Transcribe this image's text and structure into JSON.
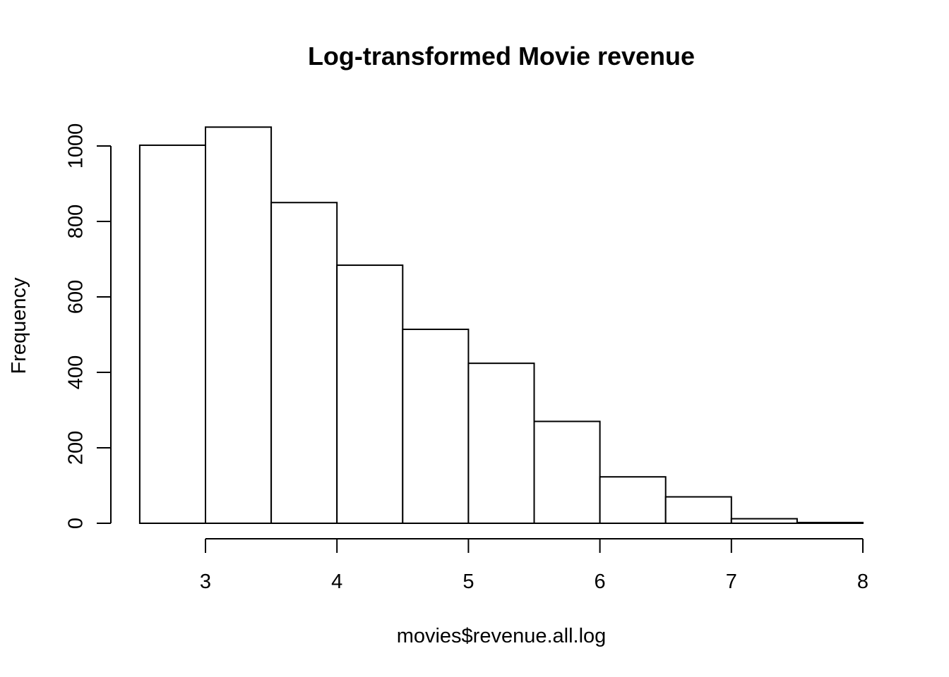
{
  "chart_data": {
    "type": "bar",
    "title": "Log-transformed Movie revenue",
    "xlabel": "movies$revenue.all.log",
    "ylabel": "Frequency",
    "bins": [
      {
        "start": 2.5,
        "end": 3.0,
        "count": 1002
      },
      {
        "start": 3.0,
        "end": 3.5,
        "count": 1050
      },
      {
        "start": 3.5,
        "end": 4.0,
        "count": 850
      },
      {
        "start": 4.0,
        "end": 4.5,
        "count": 684
      },
      {
        "start": 4.5,
        "end": 5.0,
        "count": 514
      },
      {
        "start": 5.0,
        "end": 5.5,
        "count": 424
      },
      {
        "start": 5.5,
        "end": 6.0,
        "count": 270
      },
      {
        "start": 6.0,
        "end": 6.5,
        "count": 123
      },
      {
        "start": 6.5,
        "end": 7.0,
        "count": 70
      },
      {
        "start": 7.0,
        "end": 7.5,
        "count": 12
      },
      {
        "start": 7.5,
        "end": 8.0,
        "count": 2
      }
    ],
    "x_ticks": [
      3,
      4,
      5,
      6,
      7,
      8
    ],
    "y_ticks": [
      0,
      200,
      400,
      600,
      800,
      1000
    ],
    "xlim": [
      2.5,
      8
    ],
    "ylim": [
      0,
      1050
    ],
    "grid": false,
    "legend": "none",
    "bar_fill": "#ffffff",
    "bar_stroke": "#000000"
  }
}
